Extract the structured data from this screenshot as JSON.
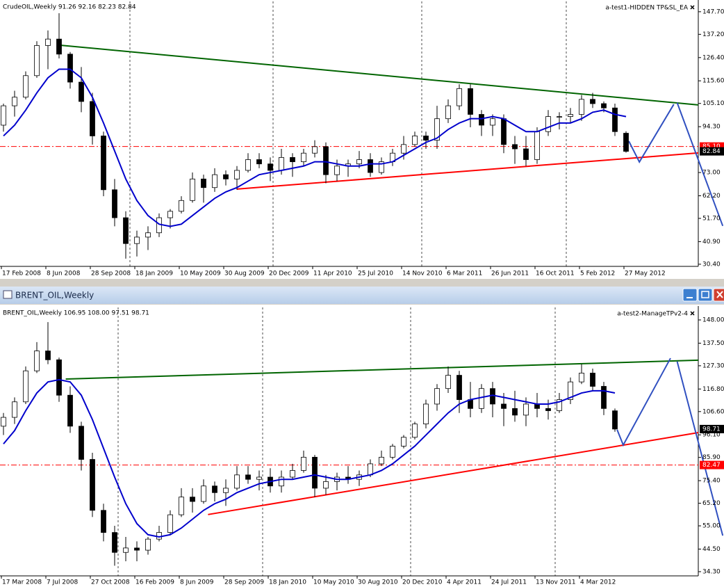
{
  "window": {
    "title": "BRENT_OIL,Weekly"
  },
  "chart_data": [
    {
      "type": "candlestick",
      "title": "CrudeOIL,Weekly  91.26 92.16 82.23 82.84",
      "expert": "a-test1-HIDDEN TP&SL_EA",
      "up_color": "#ffffff",
      "down_color": "#000000",
      "categories": [
        "17 Feb 2008",
        null,
        null,
        null,
        "8 Jun 2008",
        null,
        null,
        null,
        "28 Sep 2008",
        null,
        null,
        null,
        "18 Jan 2009",
        null,
        null,
        null,
        "10 May 2009",
        null,
        null,
        null,
        "30 Aug 2009",
        null,
        null,
        null,
        "20 Dec 2009",
        null,
        null,
        null,
        "11 Apr 2010",
        null,
        null,
        null,
        "25 Jul 2010",
        null,
        null,
        null,
        "14 Nov 2010",
        null,
        null,
        null,
        "6 Mar 2011",
        null,
        null,
        null,
        "26 Jun 2011",
        null,
        null,
        null,
        "16 Oct 2011",
        null,
        null,
        null,
        "5 Feb 2012",
        null,
        null,
        null,
        "27 May 2012"
      ],
      "open": [
        95,
        104,
        108,
        118,
        132,
        135,
        128,
        115,
        106,
        90,
        65,
        52,
        40,
        43,
        45,
        52,
        55,
        60,
        70,
        66,
        72,
        70,
        74,
        79,
        77,
        74,
        80,
        78,
        82,
        85,
        72,
        76,
        77,
        79,
        73,
        78,
        82,
        86,
        90,
        88,
        98,
        104,
        112,
        100,
        95,
        98,
        86,
        84,
        79,
        92,
        99,
        99,
        100,
        107,
        105,
        103,
        91.26
      ],
      "high": [
        105,
        111,
        120,
        134,
        139,
        147,
        129,
        122,
        110,
        92,
        70,
        55,
        46,
        48,
        54,
        56,
        62,
        73,
        72,
        75,
        74,
        76,
        82,
        82,
        80,
        84,
        82,
        84,
        88,
        87,
        79,
        79,
        83,
        82,
        80,
        84,
        90,
        92,
        92,
        104,
        107,
        114,
        114,
        102,
        100,
        100,
        90,
        90,
        94,
        102,
        101,
        103,
        109,
        110,
        106,
        105,
        92.16
      ],
      "low": [
        92,
        99,
        107,
        117,
        121,
        126,
        112,
        101,
        86,
        62,
        48,
        33,
        34,
        37,
        43,
        47,
        54,
        59,
        59,
        64,
        67,
        65,
        73,
        75,
        69,
        72,
        71,
        76,
        80,
        68,
        69,
        71,
        75,
        71,
        72,
        76,
        79,
        85,
        84,
        84,
        96,
        102,
        94,
        90,
        90,
        82,
        77,
        76,
        77,
        90,
        93,
        96,
        97,
        103,
        101,
        90,
        82.23
      ],
      "close": [
        104,
        108,
        118,
        132,
        135,
        128,
        115,
        106,
        90,
        65,
        52,
        40,
        43,
        45,
        52,
        55,
        60,
        70,
        66,
        72,
        70,
        74,
        79,
        77,
        74,
        80,
        78,
        82,
        85,
        72,
        76,
        77,
        79,
        73,
        78,
        82,
        86,
        90,
        88,
        98,
        104,
        112,
        100,
        95,
        98,
        86,
        84,
        79,
        92,
        99,
        99,
        100,
        107,
        105,
        103,
        92,
        82.84
      ],
      "ma": {
        "color": "#0000cc",
        "values": [
          90,
          95,
          102,
          110,
          117,
          121,
          121,
          117,
          108,
          96,
          83,
          70,
          60,
          53,
          49,
          48,
          49,
          53,
          57,
          61,
          64,
          66,
          69,
          72,
          73,
          74,
          75,
          76,
          78,
          78,
          77,
          76,
          76,
          77,
          77,
          78,
          81,
          84,
          87,
          89,
          93,
          96,
          98,
          98,
          99,
          98,
          95,
          92,
          92,
          94,
          96,
          96,
          98,
          101,
          102,
          100,
          99
        ]
      },
      "trendlines": [
        {
          "color": "#006400",
          "x": [
            5,
            62.5
          ],
          "y": [
            132.2,
            104.4
          ]
        },
        {
          "color": "#ff0000",
          "x": [
            21,
            62.5
          ],
          "y": [
            65.3,
            82.1
          ]
        },
        {
          "color": "#3050c0",
          "x": [
            56.25,
            57.2,
            60.3
          ],
          "y": [
            87.6,
            77.9,
            104.7
          ]
        },
        {
          "color": "#3050c0",
          "x": [
            60.6,
            64.7
          ],
          "y": [
            105.4,
            48.2
          ]
        }
      ],
      "price_lines": [
        {
          "value": 85.1,
          "label": "85.10",
          "color": "#ff0000"
        }
      ],
      "bid": 82.84,
      "ylim": [
        29.4,
        152.5
      ],
      "yticks": [
        {
          "value": 147.7,
          "label": "147.70"
        },
        {
          "value": 137.2,
          "label": "137.20"
        },
        {
          "value": 126.4,
          "label": "126.40"
        },
        {
          "value": 115.6,
          "label": "115.60"
        },
        {
          "value": 105.1,
          "label": "105.10"
        },
        {
          "value": 94.3,
          "label": "94.30"
        },
        {
          "value": 73,
          "label": "73.00"
        },
        {
          "value": 62.2,
          "label": "62.20"
        },
        {
          "value": 51.7,
          "label": "51.70"
        },
        {
          "value": 40.9,
          "label": "40.90"
        },
        {
          "value": 30.4,
          "label": "30.40"
        }
      ]
    },
    {
      "type": "candlestick",
      "title": "BRENT_OIL,Weekly  106.95 108.00 97.51 98.71",
      "expert": "a-test2-ManageTPv2-4",
      "up_color": "#ffffff",
      "down_color": "#000000",
      "categories": [
        "17 Mar 2008",
        null,
        null,
        null,
        "7 Jul 2008",
        null,
        null,
        null,
        "27 Oct 2008",
        null,
        null,
        null,
        "16 Feb 2009",
        null,
        null,
        null,
        "8 Jun 2009",
        null,
        null,
        null,
        "28 Sep 2009",
        null,
        null,
        null,
        "18 Jan 2010",
        null,
        null,
        null,
        "10 May 2010",
        null,
        null,
        null,
        "30 Aug 2010",
        null,
        null,
        null,
        "20 Dec 2010",
        null,
        null,
        null,
        "4 Apr 2011",
        null,
        null,
        null,
        "24 Jul 2011",
        null,
        null,
        null,
        "13 Nov 2011",
        null,
        null,
        null,
        "4 Mar 2012",
        null,
        null,
        null
      ],
      "open": [
        100,
        104,
        111,
        125,
        134,
        130,
        114,
        100,
        85,
        62,
        52,
        43,
        45,
        44,
        49,
        52,
        60,
        68,
        66,
        73,
        70,
        72,
        78,
        76,
        77,
        73,
        77,
        80,
        86,
        72,
        75,
        77,
        76,
        78,
        83,
        86,
        91,
        95,
        101,
        110,
        117,
        123,
        112,
        108,
        117,
        110,
        108,
        105,
        110,
        108,
        107,
        112,
        120,
        124,
        118,
        106.95
      ],
      "high": [
        106,
        113,
        127,
        138,
        147,
        131,
        118,
        102,
        88,
        65,
        55,
        50,
        48,
        50,
        55,
        62,
        72,
        72,
        76,
        75,
        76,
        82,
        82,
        80,
        81,
        80,
        83,
        89,
        87,
        78,
        79,
        82,
        80,
        85,
        89,
        92,
        96,
        102,
        112,
        119,
        127,
        125,
        120,
        119,
        120,
        115,
        116,
        113,
        115,
        112,
        115,
        122,
        128,
        126,
        120,
        108
      ],
      "low": [
        96,
        101,
        110,
        124,
        128,
        111,
        97,
        80,
        59,
        48,
        37,
        39,
        39,
        42,
        48,
        51,
        59,
        61,
        65,
        66,
        64,
        71,
        74,
        71,
        70,
        70,
        76,
        79,
        68,
        69,
        71,
        74,
        73,
        77,
        82,
        85,
        90,
        94,
        99,
        107,
        115,
        106,
        104,
        106,
        104,
        100,
        102,
        100,
        104,
        103,
        106,
        110,
        119,
        116,
        105,
        97.51
      ],
      "close": [
        104,
        111,
        125,
        134,
        130,
        114,
        100,
        85,
        62,
        52,
        43,
        45,
        44,
        49,
        52,
        60,
        68,
        66,
        73,
        70,
        72,
        78,
        76,
        77,
        73,
        77,
        80,
        86,
        72,
        75,
        77,
        76,
        78,
        83,
        86,
        91,
        95,
        101,
        110,
        117,
        123,
        112,
        108,
        117,
        110,
        108,
        105,
        110,
        108,
        107,
        112,
        120,
        124,
        118,
        108,
        98.71
      ],
      "ma": {
        "color": "#0000cc",
        "values": [
          92,
          98,
          107,
          115,
          120,
          121,
          120,
          114,
          103,
          90,
          77,
          65,
          56,
          51,
          50,
          51,
          54,
          58,
          62,
          65,
          67,
          70,
          72,
          74,
          75,
          76,
          76,
          77,
          78,
          77,
          76,
          76,
          77,
          78,
          80,
          83,
          87,
          91,
          96,
          101,
          106,
          110,
          112,
          113,
          114,
          113,
          112,
          111,
          110,
          110,
          111,
          113,
          115,
          116,
          116,
          115
        ]
      },
      "trendlines": [
        {
          "color": "#006400",
          "x": [
            5.6,
            62.5
          ],
          "y": [
            121.3,
            129.8
          ]
        },
        {
          "color": "#ff0000",
          "x": [
            18.4,
            62.5
          ],
          "y": [
            60.1,
            97.1
          ]
        },
        {
          "color": "#3050c0",
          "x": [
            55.2,
            55.75,
            60
          ],
          "y": [
            98.4,
            91.5,
            130.7
          ]
        },
        {
          "color": "#3050c0",
          "x": [
            60.6,
            64.7
          ],
          "y": [
            129.2,
            50.6
          ]
        }
      ],
      "price_lines": [
        {
          "value": 82.47,
          "label": "82.47",
          "color": "#ff0000"
        }
      ],
      "bid": 98.71,
      "ylim": [
        32.4,
        153.65
      ],
      "yticks": [
        {
          "value": 148,
          "label": "148.00"
        },
        {
          "value": 137.5,
          "label": "137.50"
        },
        {
          "value": 127.3,
          "label": "127.30"
        },
        {
          "value": 116.8,
          "label": "116.80"
        },
        {
          "value": 106.6,
          "label": "106.60"
        },
        {
          "value": 96.1,
          "label": "96.10"
        },
        {
          "value": 85.9,
          "label": "85.90"
        },
        {
          "value": 75.4,
          "label": "75.40"
        },
        {
          "value": 65.2,
          "label": "65.20"
        },
        {
          "value": 55,
          "label": "55.00"
        },
        {
          "value": 44.5,
          "label": "44.50"
        },
        {
          "value": 34.3,
          "label": "34.30"
        }
      ]
    }
  ]
}
